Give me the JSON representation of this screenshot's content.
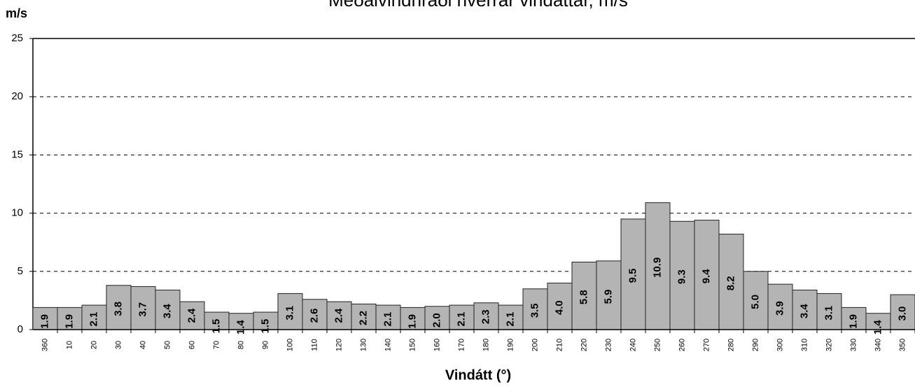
{
  "chart_data": {
    "type": "bar",
    "title": "Meðalvindhraði hverrar vindáttar, m/s",
    "y_axis_label": "m/s",
    "x_axis_label": "Vindátt (°)",
    "categories": [
      "360",
      "10",
      "20",
      "30",
      "40",
      "50",
      "60",
      "70",
      "80",
      "90",
      "100",
      "110",
      "120",
      "130",
      "140",
      "150",
      "160",
      "170",
      "180",
      "190",
      "200",
      "210",
      "220",
      "230",
      "240",
      "250",
      "260",
      "270",
      "280",
      "290",
      "300",
      "310",
      "320",
      "330",
      "340",
      "350"
    ],
    "values": [
      1.9,
      1.9,
      2.1,
      3.8,
      3.7,
      3.4,
      2.4,
      1.5,
      1.4,
      1.5,
      3.1,
      2.6,
      2.4,
      2.2,
      2.1,
      1.9,
      2.0,
      2.1,
      2.3,
      2.1,
      3.5,
      4.0,
      5.8,
      5.9,
      9.5,
      10.9,
      9.3,
      9.4,
      8.2,
      5.0,
      3.9,
      3.4,
      3.1,
      1.9,
      1.4,
      3.0
    ],
    "value_labels": [
      "1.9",
      "1.9",
      "2.1",
      "3.8",
      "3.7",
      "3.4",
      "2.4",
      "1.5",
      "1.4",
      "1.5",
      "3.1",
      "2.6",
      "2.4",
      "2.2",
      "2.1",
      "1.9",
      "2.0",
      "2.1",
      "2.3",
      "2.1",
      "3.5",
      "4.0",
      "5.8",
      "5.9",
      "9.5",
      "10.9",
      "9.3",
      "9.4",
      "8.2",
      "5.0",
      "3.9",
      "3.4",
      "3.1",
      "1.9",
      "1.4",
      "3.0"
    ],
    "color": "#b4b4b4",
    "ylim": [
      0,
      25
    ],
    "yticks": [
      0,
      5,
      10,
      15,
      20,
      25
    ],
    "grid": true
  }
}
